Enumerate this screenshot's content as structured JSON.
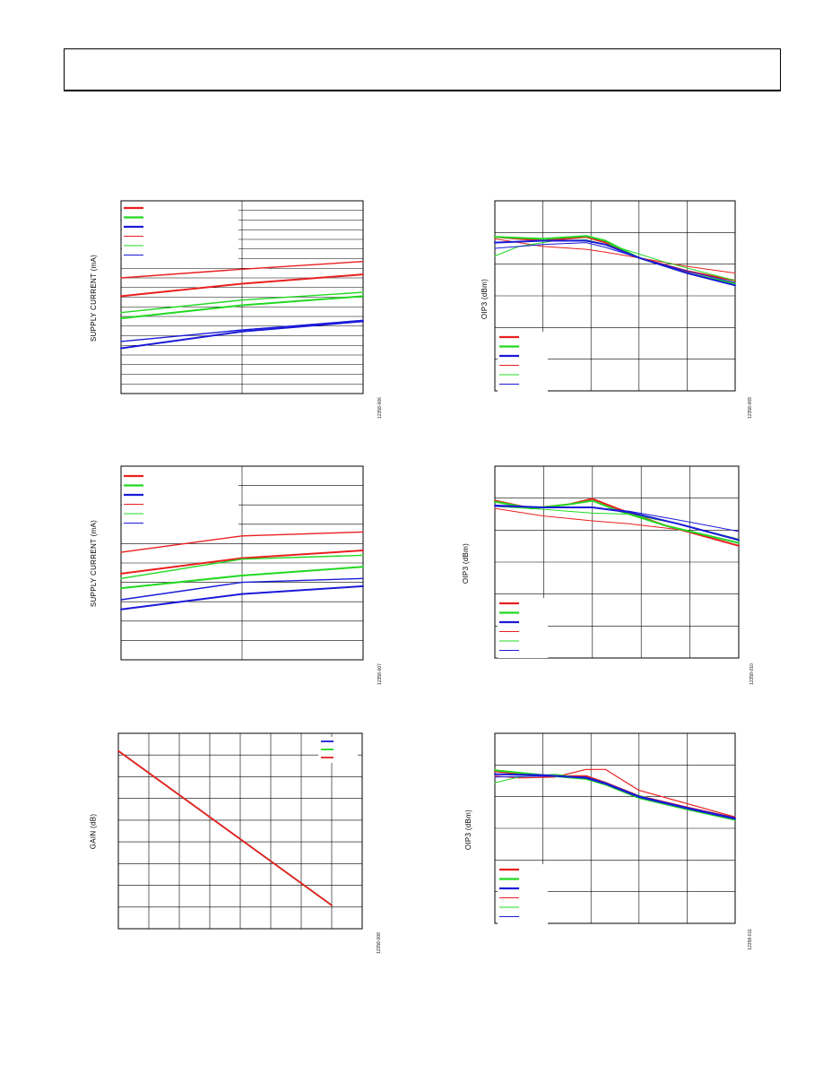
{
  "page": {
    "header_title": ""
  },
  "colors": {
    "red": "#e8201f",
    "green": "#22d822",
    "blue": "#1a1ad8",
    "grid": "#000000"
  },
  "chart_data": [
    {
      "id": "c1",
      "type": "line",
      "title": "",
      "ylabel": "SUPPLY CURRENT (mA)",
      "xlabel": "",
      "figure_id": "12358-006",
      "xlim": [
        0,
        1
      ],
      "ylim": [
        0,
        1
      ],
      "grid": true,
      "legend": "top-left",
      "grid_x_count": 2,
      "grid_y_count": 20,
      "legend_entries": [
        {
          "color": "red",
          "width": 2.2
        },
        {
          "color": "green",
          "width": 2.2
        },
        {
          "color": "blue",
          "width": 2.2
        },
        {
          "color": "red",
          "width": 1
        },
        {
          "color": "green",
          "width": 1
        },
        {
          "color": "blue",
          "width": 1
        }
      ],
      "series": [
        {
          "color": "red",
          "width": 1.4,
          "x": [
            0,
            0.5,
            1
          ],
          "y": [
            0.6,
            0.645,
            0.685
          ]
        },
        {
          "color": "red",
          "width": 2.0,
          "x": [
            0,
            0.5,
            1
          ],
          "y": [
            0.505,
            0.57,
            0.618
          ]
        },
        {
          "color": "green",
          "width": 1.4,
          "x": [
            0,
            0.5,
            1
          ],
          "y": [
            0.42,
            0.485,
            0.525
          ]
        },
        {
          "color": "green",
          "width": 2.0,
          "x": [
            0,
            0.5,
            1
          ],
          "y": [
            0.39,
            0.458,
            0.505
          ]
        },
        {
          "color": "blue",
          "width": 1.4,
          "x": [
            0,
            0.5,
            1
          ],
          "y": [
            0.27,
            0.33,
            0.38
          ]
        },
        {
          "color": "blue",
          "width": 2.0,
          "x": [
            0,
            0.5,
            1
          ],
          "y": [
            0.235,
            0.322,
            0.375
          ]
        }
      ]
    },
    {
      "id": "c2",
      "type": "line",
      "title": "",
      "ylabel": "OIP3 (dBm)",
      "xlabel": "",
      "figure_id": "12358-009",
      "xlim": [
        0,
        1
      ],
      "ylim": [
        0,
        1
      ],
      "grid": true,
      "legend": "bottom-left",
      "grid_x_count": 5,
      "grid_y_count": 6,
      "legend_entries": [
        {
          "color": "red",
          "width": 2.2
        },
        {
          "color": "green",
          "width": 2.2
        },
        {
          "color": "blue",
          "width": 2.2
        },
        {
          "color": "red",
          "width": 1
        },
        {
          "color": "green",
          "width": 1
        },
        {
          "color": "blue",
          "width": 1
        }
      ],
      "series": [
        {
          "color": "red",
          "width": 2.0,
          "x": [
            0,
            0.2,
            0.38,
            0.46,
            0.6,
            0.8,
            1
          ],
          "y": [
            0.81,
            0.79,
            0.81,
            0.78,
            0.7,
            0.63,
            0.58
          ]
        },
        {
          "color": "red",
          "width": 1.0,
          "x": [
            0,
            0.2,
            0.38,
            0.46,
            0.6,
            0.8,
            1
          ],
          "y": [
            0.8,
            0.76,
            0.745,
            0.73,
            0.7,
            0.655,
            0.62
          ]
        },
        {
          "color": "green",
          "width": 2.0,
          "x": [
            0,
            0.2,
            0.38,
            0.46,
            0.6,
            0.8,
            1
          ],
          "y": [
            0.81,
            0.8,
            0.815,
            0.79,
            0.7,
            0.62,
            0.565
          ]
        },
        {
          "color": "green",
          "width": 1.0,
          "x": [
            0,
            0.1,
            0.25,
            0.38,
            0.5,
            0.7,
            1
          ],
          "y": [
            0.71,
            0.76,
            0.79,
            0.795,
            0.76,
            0.68,
            0.58
          ]
        },
        {
          "color": "blue",
          "width": 2.0,
          "x": [
            0,
            0.2,
            0.38,
            0.46,
            0.6,
            0.8,
            1
          ],
          "y": [
            0.78,
            0.79,
            0.79,
            0.77,
            0.7,
            0.62,
            0.555
          ]
        },
        {
          "color": "blue",
          "width": 1.0,
          "x": [
            0,
            0.2,
            0.38,
            0.46,
            0.6,
            0.8,
            1
          ],
          "y": [
            0.75,
            0.77,
            0.78,
            0.755,
            0.7,
            0.63,
            0.57
          ]
        }
      ]
    },
    {
      "id": "c3",
      "type": "line",
      "title": "",
      "ylabel": "SUPPLY CURRENT (mA)",
      "xlabel": "",
      "figure_id": "12358-007",
      "xlim": [
        0,
        1
      ],
      "ylim": [
        0,
        1
      ],
      "grid": true,
      "legend": "top-left",
      "grid_x_count": 2,
      "grid_y_count": 10,
      "legend_entries": [
        {
          "color": "red",
          "width": 2.2
        },
        {
          "color": "green",
          "width": 2.2
        },
        {
          "color": "blue",
          "width": 2.2
        },
        {
          "color": "red",
          "width": 1
        },
        {
          "color": "green",
          "width": 1
        },
        {
          "color": "blue",
          "width": 1
        }
      ],
      "series": [
        {
          "color": "red",
          "width": 1.4,
          "x": [
            0,
            0.5,
            1
          ],
          "y": [
            0.555,
            0.64,
            0.66
          ]
        },
        {
          "color": "red",
          "width": 2.0,
          "x": [
            0,
            0.5,
            1
          ],
          "y": [
            0.445,
            0.525,
            0.565
          ]
        },
        {
          "color": "green",
          "width": 1.4,
          "x": [
            0,
            0.5,
            1
          ],
          "y": [
            0.42,
            0.52,
            0.54
          ]
        },
        {
          "color": "green",
          "width": 2.0,
          "x": [
            0,
            0.5,
            1
          ],
          "y": [
            0.37,
            0.435,
            0.48
          ]
        },
        {
          "color": "blue",
          "width": 1.4,
          "x": [
            0,
            0.5,
            1
          ],
          "y": [
            0.31,
            0.4,
            0.42
          ]
        },
        {
          "color": "blue",
          "width": 2.0,
          "x": [
            0,
            0.5,
            1
          ],
          "y": [
            0.26,
            0.34,
            0.38
          ]
        }
      ]
    },
    {
      "id": "c4",
      "type": "line",
      "title": "",
      "ylabel": "OIP3 (dBm)",
      "xlabel": "",
      "figure_id": "12358-010",
      "xlim": [
        0,
        1
      ],
      "ylim": [
        0,
        1
      ],
      "grid": true,
      "legend": "bottom-left",
      "grid_x_count": 5,
      "grid_y_count": 6,
      "legend_entries": [
        {
          "color": "red",
          "width": 2.2
        },
        {
          "color": "green",
          "width": 2.2
        },
        {
          "color": "blue",
          "width": 2.2
        },
        {
          "color": "red",
          "width": 1
        },
        {
          "color": "green",
          "width": 1
        },
        {
          "color": "blue",
          "width": 1
        }
      ],
      "series": [
        {
          "color": "red",
          "width": 2.0,
          "x": [
            0,
            0.15,
            0.3,
            0.4,
            0.5,
            0.7,
            1
          ],
          "y": [
            0.82,
            0.78,
            0.8,
            0.83,
            0.78,
            0.69,
            0.585
          ]
        },
        {
          "color": "red",
          "width": 1.0,
          "x": [
            0,
            0.2,
            0.4,
            0.55,
            0.75,
            1
          ],
          "y": [
            0.78,
            0.74,
            0.715,
            0.7,
            0.67,
            0.6
          ]
        },
        {
          "color": "green",
          "width": 2.0,
          "x": [
            0,
            0.15,
            0.3,
            0.4,
            0.5,
            0.7,
            1
          ],
          "y": [
            0.815,
            0.78,
            0.8,
            0.82,
            0.77,
            0.69,
            0.6
          ]
        },
        {
          "color": "green",
          "width": 1.0,
          "x": [
            0,
            0.2,
            0.4,
            0.55,
            0.75,
            1
          ],
          "y": [
            0.79,
            0.775,
            0.755,
            0.75,
            0.7,
            0.62
          ]
        },
        {
          "color": "blue",
          "width": 2.0,
          "x": [
            0,
            0.2,
            0.4,
            0.55,
            0.75,
            1
          ],
          "y": [
            0.795,
            0.785,
            0.785,
            0.76,
            0.7,
            0.615
          ]
        },
        {
          "color": "blue",
          "width": 1.0,
          "x": [
            0,
            0.2,
            0.4,
            0.55,
            0.75,
            1
          ],
          "y": [
            0.79,
            0.785,
            0.785,
            0.765,
            0.72,
            0.66
          ]
        }
      ]
    },
    {
      "id": "c5",
      "type": "line",
      "title": "",
      "ylabel": "GAIN (dB)",
      "xlabel": "",
      "figure_id": "12358-008",
      "xlim": [
        0,
        1
      ],
      "ylim": [
        0,
        1
      ],
      "grid": true,
      "legend": "top-right",
      "grid_x_count": 8,
      "grid_y_count": 9,
      "legend_entries": [
        {
          "color": "blue",
          "width": 1.8
        },
        {
          "color": "green",
          "width": 1.8
        },
        {
          "color": "red",
          "width": 1.8
        }
      ],
      "series": [
        {
          "color": "blue",
          "width": 1.6,
          "x": [
            0,
            0.875
          ],
          "y": [
            0.91,
            0.12
          ]
        },
        {
          "color": "green",
          "width": 1.6,
          "x": [
            0,
            0.875
          ],
          "y": [
            0.91,
            0.12
          ]
        },
        {
          "color": "red",
          "width": 1.8,
          "x": [
            0,
            0.875
          ],
          "y": [
            0.91,
            0.12
          ]
        }
      ]
    },
    {
      "id": "c6",
      "type": "line",
      "title": "",
      "ylabel": "OIP3 (dBm)",
      "xlabel": "",
      "figure_id": "12358-011",
      "xlim": [
        0,
        1
      ],
      "ylim": [
        0,
        1
      ],
      "grid": true,
      "legend": "bottom-left",
      "grid_x_count": 5,
      "grid_y_count": 6,
      "legend_entries": [
        {
          "color": "red",
          "width": 2.2
        },
        {
          "color": "green",
          "width": 2.2
        },
        {
          "color": "blue",
          "width": 2.2
        },
        {
          "color": "red",
          "width": 1
        },
        {
          "color": "green",
          "width": 1
        },
        {
          "color": "blue",
          "width": 1
        }
      ],
      "series": [
        {
          "color": "red",
          "width": 1.2,
          "x": [
            0,
            0.1,
            0.25,
            0.38,
            0.46,
            0.6,
            0.8,
            1
          ],
          "y": [
            0.775,
            0.765,
            0.77,
            0.81,
            0.81,
            0.7,
            0.63,
            0.56
          ]
        },
        {
          "color": "red",
          "width": 2.0,
          "x": [
            0,
            0.2,
            0.38,
            0.46,
            0.6,
            0.8,
            1
          ],
          "y": [
            0.8,
            0.775,
            0.775,
            0.74,
            0.67,
            0.61,
            0.555
          ]
        },
        {
          "color": "green",
          "width": 2.0,
          "x": [
            0,
            0.2,
            0.38,
            0.46,
            0.6,
            0.8,
            1
          ],
          "y": [
            0.805,
            0.78,
            0.76,
            0.73,
            0.66,
            0.6,
            0.545
          ]
        },
        {
          "color": "green",
          "width": 1.0,
          "x": [
            0,
            0.1,
            0.25,
            0.4,
            0.55,
            0.75,
            1
          ],
          "y": [
            0.74,
            0.77,
            0.785,
            0.76,
            0.69,
            0.62,
            0.55
          ]
        },
        {
          "color": "blue",
          "width": 2.0,
          "x": [
            0,
            0.2,
            0.38,
            0.46,
            0.6,
            0.8,
            1
          ],
          "y": [
            0.785,
            0.78,
            0.765,
            0.735,
            0.665,
            0.605,
            0.55
          ]
        },
        {
          "color": "blue",
          "width": 1.0,
          "x": [
            0,
            0.2,
            0.38,
            0.46,
            0.6,
            0.8,
            1
          ],
          "y": [
            0.77,
            0.775,
            0.77,
            0.74,
            0.67,
            0.61,
            0.555
          ]
        }
      ]
    }
  ]
}
